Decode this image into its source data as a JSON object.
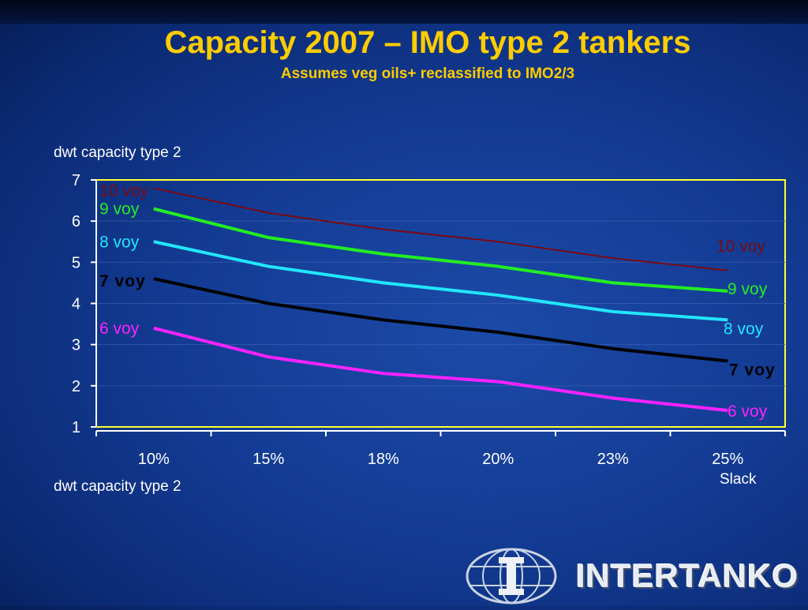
{
  "title": "Capacity 2007 – IMO type 2 tankers",
  "subtitle": "Assumes veg oils+ reclassified to IMO2/3",
  "logo_text": "INTERTANKO",
  "chart_data": {
    "type": "line",
    "ylabel": "dwt capacity type 2",
    "footer_label": "dwt capacity type 2",
    "xlabel": "Slack",
    "categories": [
      "10%",
      "15%",
      "18%",
      "20%",
      "23%",
      "25%"
    ],
    "ylim": [
      1,
      7
    ],
    "yticks": [
      1,
      2,
      3,
      4,
      5,
      6,
      7
    ],
    "grid": true,
    "series": [
      {
        "name": "10 voy",
        "color": "#7a0a12",
        "values": [
          6.8,
          6.2,
          5.8,
          5.5,
          5.1,
          4.8
        ]
      },
      {
        "name": "9 voy",
        "color": "#22ee22",
        "values": [
          6.3,
          5.6,
          5.2,
          4.9,
          4.5,
          4.3
        ]
      },
      {
        "name": "8 voy",
        "color": "#22e6ff",
        "values": [
          5.5,
          4.9,
          4.5,
          4.2,
          3.8,
          3.6
        ]
      },
      {
        "name": "7 voy",
        "color": "#000000",
        "values": [
          4.6,
          4.0,
          3.6,
          3.3,
          2.9,
          2.6
        ]
      },
      {
        "name": "6 voy",
        "color": "#ff22ff",
        "values": [
          3.4,
          2.7,
          2.3,
          2.1,
          1.7,
          1.4
        ]
      }
    ]
  }
}
